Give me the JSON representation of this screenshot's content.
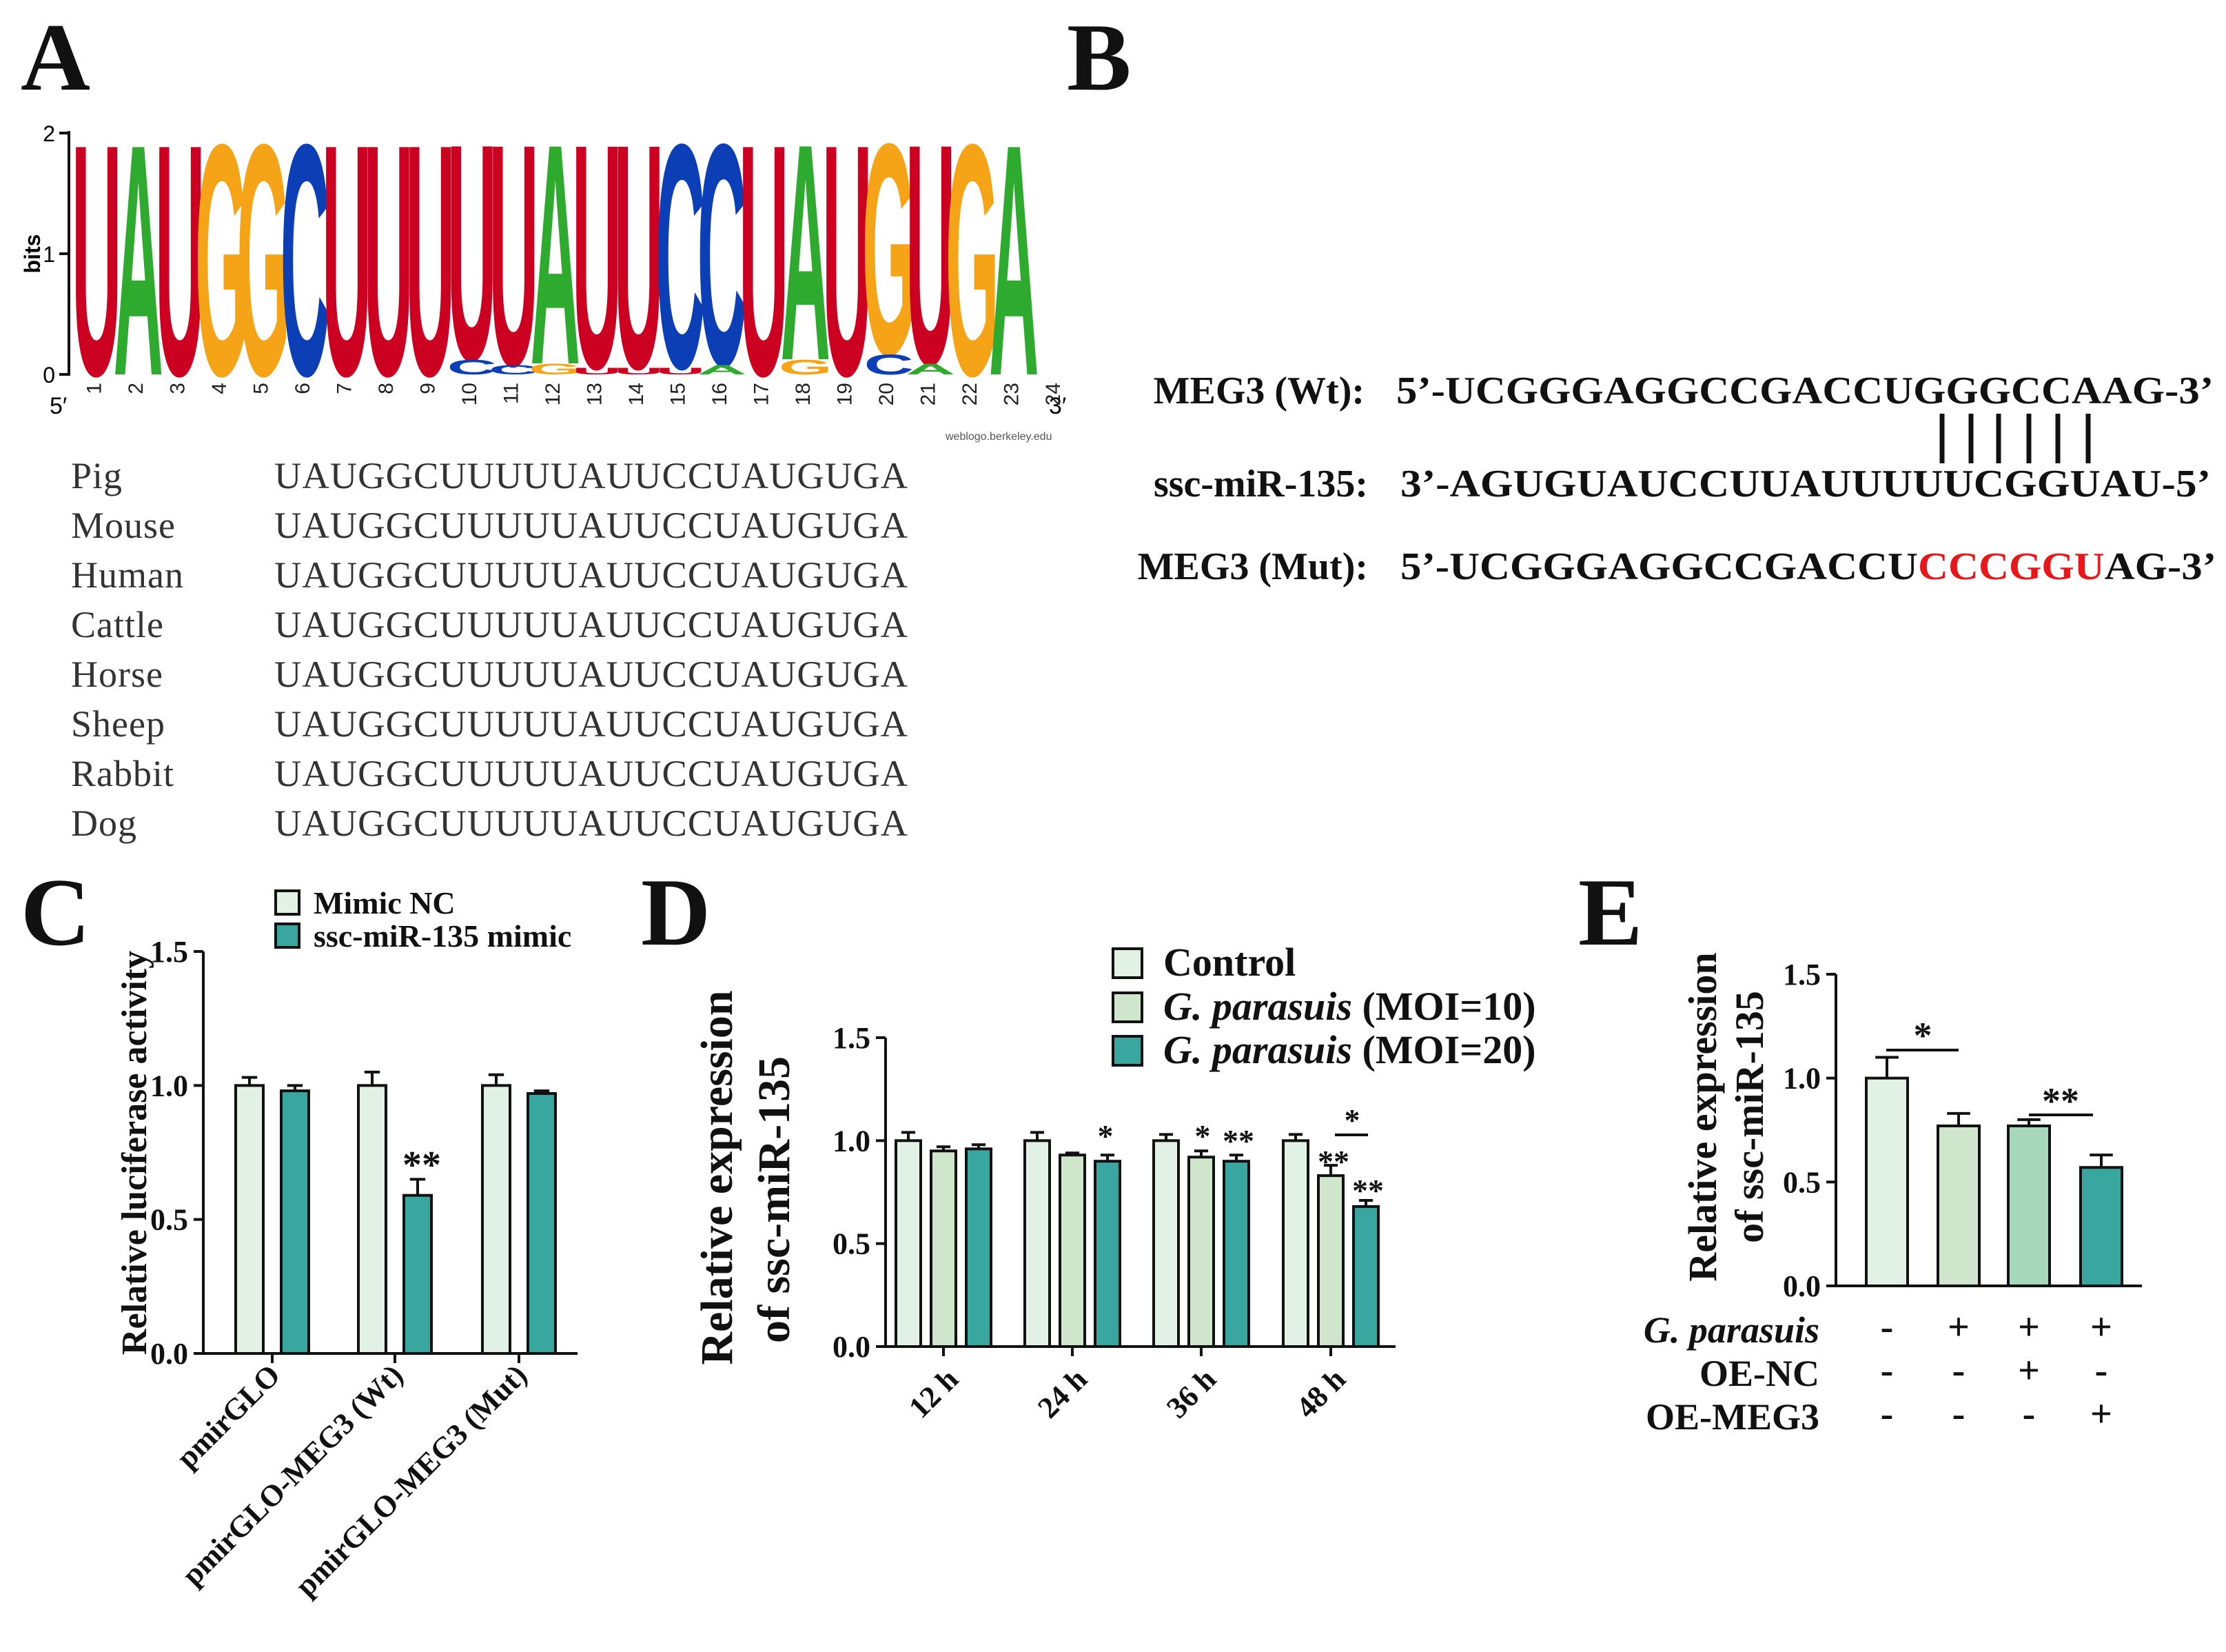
{
  "panels": {
    "a": "A",
    "b": "B",
    "c": "C",
    "d": "D",
    "e": "E"
  },
  "colors": {
    "U": "#cc0020",
    "A": "#2eaa2e",
    "G": "#f4a416",
    "C": "#0c3fb5",
    "light": "#e2f1e6",
    "mid": "#cfe6cd",
    "teal": "#3aa6a0",
    "mint": "#a8d8bc",
    "red": "#e8171b"
  },
  "logo": {
    "y_label": "bits",
    "y_ticks": [
      "0",
      "1",
      "2"
    ],
    "positions": [
      "1",
      "2",
      "3",
      "4",
      "5",
      "6",
      "7",
      "8",
      "9",
      "10",
      "11",
      "12",
      "13",
      "14",
      "15",
      "16",
      "17",
      "18",
      "19",
      "20",
      "21",
      "22",
      "23",
      "24"
    ],
    "end5": "5′",
    "end3": "3′",
    "credit": "weblogo.berkeley.edu",
    "letters": [
      {
        "pos": "1",
        "main": "U"
      },
      {
        "pos": "2",
        "main": "A"
      },
      {
        "pos": "3",
        "main": "U"
      },
      {
        "pos": "4",
        "main": "G"
      },
      {
        "pos": "5",
        "main": "G"
      },
      {
        "pos": "6",
        "main": "C"
      },
      {
        "pos": "7",
        "main": "U"
      },
      {
        "pos": "8",
        "main": "U"
      },
      {
        "pos": "9",
        "main": "U"
      },
      {
        "pos": "10",
        "main": "U",
        "minor": "C"
      },
      {
        "pos": "11",
        "main": "U",
        "minor": "C"
      },
      {
        "pos": "12",
        "main": "A",
        "minor": "G"
      },
      {
        "pos": "13",
        "main": "U",
        "minor": "U"
      },
      {
        "pos": "14",
        "main": "U",
        "minor": "U"
      },
      {
        "pos": "15",
        "main": "C",
        "minor": "U"
      },
      {
        "pos": "16",
        "main": "C",
        "minor": "A"
      },
      {
        "pos": "17",
        "main": "U"
      },
      {
        "pos": "18",
        "main": "A",
        "minor": "G"
      },
      {
        "pos": "19",
        "main": "U"
      },
      {
        "pos": "20",
        "main": "G",
        "minor": "C"
      },
      {
        "pos": "21",
        "main": "U",
        "minor": "A"
      },
      {
        "pos": "22",
        "main": "G"
      },
      {
        "pos": "23",
        "main": "A"
      }
    ]
  },
  "alignment": [
    {
      "species": "Pig",
      "seq": "UAUGGCUUUUUAUUCCUAUGUGA"
    },
    {
      "species": "Mouse",
      "seq": "UAUGGCUUUUUAUUCCUAUGUGA"
    },
    {
      "species": "Human",
      "seq": "UAUGGCUUUUUAUUCCUAUGUGA"
    },
    {
      "species": "Cattle",
      "seq": "UAUGGCUUUUUAUUCCUAUGUGA"
    },
    {
      "species": "Horse",
      "seq": "UAUGGCUUUUUAUUCCUAUGUGA"
    },
    {
      "species": "Sheep",
      "seq": "UAUGGCUUUUUAUUCCUAUGUGA"
    },
    {
      "species": "Rabbit",
      "seq": "UAUGGCUUUUUAUUCCUAUGUGA"
    },
    {
      "species": "Dog",
      "seq": "UAUGGCUUUUUAUUCCUAUGUGA"
    }
  ],
  "binding": {
    "wt_label": "MEG3 (Wt):",
    "wt_seq": "5’-UCGGGAGGCCGACCUGGGCCAAG-3’",
    "mir_label": "ssc-miR-135:",
    "mir_seq": "3’-AGUGUAUCCUUAUUUUUCGGUAU-5’",
    "pair_marks": "| | | | | |",
    "mut_label": "MEG3 (Mut):",
    "mut_prefix": "5’-UCGGGAGGCCGACCU",
    "mut_red": "CCCGGU",
    "mut_suffix": "AG-3’"
  },
  "chart_data": [
    {
      "panel": "C",
      "type": "bar",
      "ylabel": "Relative luciferase activity",
      "ylim": [
        0,
        1.5
      ],
      "yticks": [
        "0.0",
        "0.5",
        "1.0",
        "1.5"
      ],
      "categories": [
        "pmirGLO",
        "pmirGLO-MEG3 (Wt)",
        "pmirGLO-MEG3 (Mut)"
      ],
      "series": [
        {
          "name": "Mimic NC",
          "values": [
            1.0,
            1.0,
            1.0
          ],
          "errors": [
            0.03,
            0.05,
            0.04
          ]
        },
        {
          "name": "ssc-miR-135 mimic",
          "values": [
            0.98,
            0.59,
            0.97
          ],
          "errors": [
            0.02,
            0.06,
            0.01
          ]
        }
      ],
      "annotations": [
        "**"
      ]
    },
    {
      "panel": "D",
      "type": "bar",
      "ylabel_line1": "Relative expression",
      "ylabel_line2": "of ssc-miR-135",
      "ylim": [
        0,
        1.5
      ],
      "yticks": [
        "0.0",
        "0.5",
        "1.0",
        "1.5"
      ],
      "categories": [
        "12 h",
        "24 h",
        "36 h",
        "48 h"
      ],
      "legend_italic": "G. parasuis",
      "series": [
        {
          "name": "Control",
          "values": [
            1.0,
            1.0,
            1.0,
            1.0
          ],
          "errors": [
            0.04,
            0.04,
            0.03,
            0.03
          ]
        },
        {
          "name_suffix": " (MOI=10)",
          "values": [
            0.95,
            0.93,
            0.92,
            0.83
          ],
          "errors": [
            0.02,
            0.01,
            0.03,
            0.05
          ]
        },
        {
          "name_suffix": " (MOI=20)",
          "values": [
            0.96,
            0.9,
            0.9,
            0.68
          ],
          "errors": [
            0.02,
            0.03,
            0.03,
            0.03
          ]
        }
      ],
      "annotations": [
        "*",
        "*",
        "**",
        "**",
        "**",
        "*"
      ]
    },
    {
      "panel": "E",
      "type": "bar",
      "ylabel_line1": "Relative expression",
      "ylabel_line2": "of ssc-miR-135",
      "ylim": [
        0,
        1.5
      ],
      "yticks": [
        "0.0",
        "0.5",
        "1.0",
        "1.5"
      ],
      "values": [
        1.0,
        0.77,
        0.77,
        0.57
      ],
      "errors": [
        0.1,
        0.06,
        0.03,
        0.06
      ],
      "conditions": [
        {
          "label": "G. parasuis",
          "italic": true,
          "signs": [
            "-",
            "+",
            "+",
            "+"
          ]
        },
        {
          "label": "OE-NC",
          "italic": false,
          "signs": [
            "-",
            "-",
            "+",
            "-"
          ]
        },
        {
          "label": "OE-MEG3",
          "italic": false,
          "signs": [
            "-",
            "-",
            "-",
            "+"
          ]
        }
      ],
      "annotations": [
        "*",
        "**"
      ]
    }
  ]
}
